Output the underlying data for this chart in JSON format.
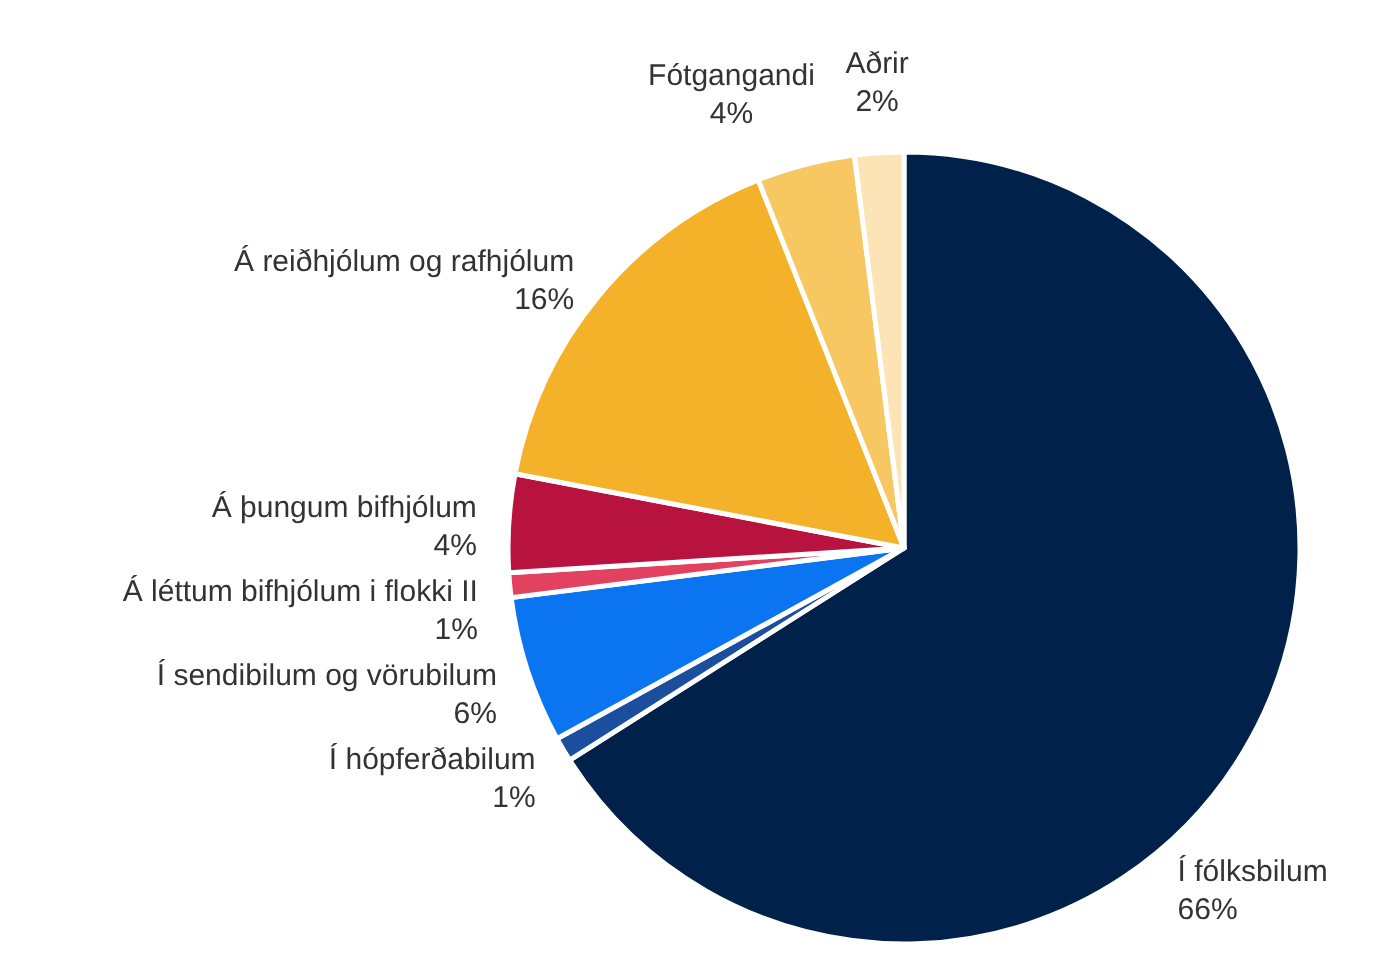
{
  "chart_data": {
    "type": "pie",
    "categories": [
      "Í fólksbilum",
      "Í hópferðabilum",
      "Í sendibilum og vörubilum",
      "Á léttum bifhjólum i flokki II",
      "Á þungum bifhjólum",
      "Á reiðhjólum og rafhjólum",
      "Fótgangandi",
      "Aðrir"
    ],
    "values": [
      66,
      1,
      6,
      1,
      4,
      16,
      4,
      2
    ],
    "value_labels": [
      "66%",
      "1%",
      "6%",
      "1%",
      "4%",
      "16%",
      "4%",
      "2%"
    ],
    "colors": [
      "#00214a",
      "#1b4f9e",
      "#0b74f0",
      "#e2415f",
      "#b8123e",
      "#f4b12a",
      "#f7c762",
      "#fce4b6"
    ]
  }
}
